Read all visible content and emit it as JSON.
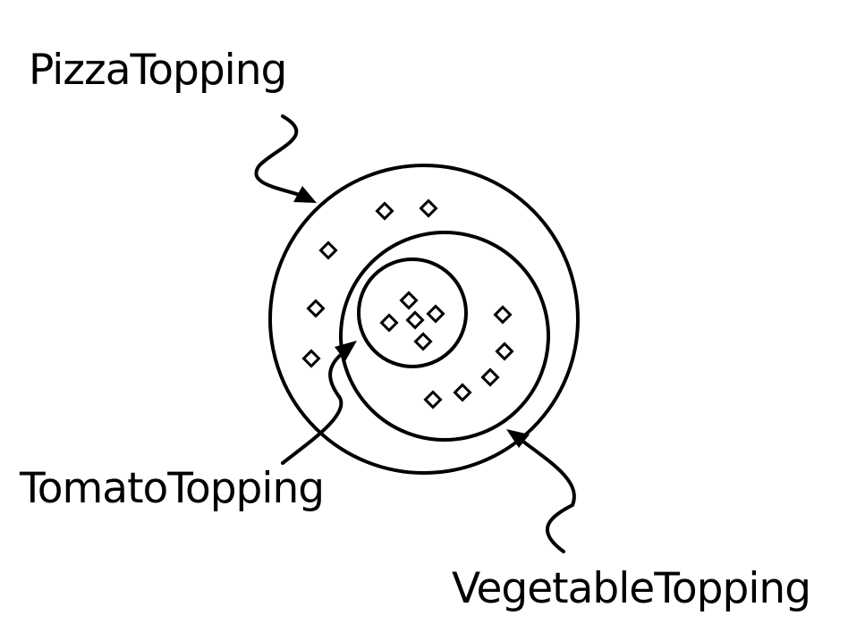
{
  "labels": {
    "pizza": "PizzaTopping",
    "tomato": "TomatoTopping",
    "vegetable": "VegetableTopping"
  },
  "colors": {
    "stroke": "#000000",
    "background": "#ffffff"
  }
}
